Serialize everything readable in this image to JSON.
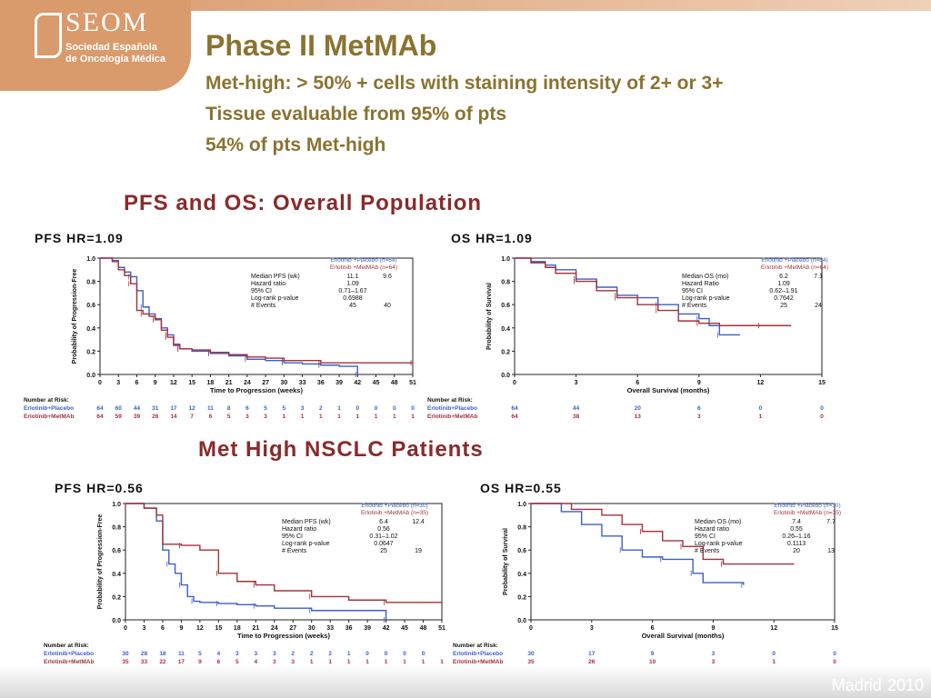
{
  "logo": {
    "name": "SEOM",
    "subtitle1": "Sociedad Española",
    "subtitle2": "de Oncología Médica"
  },
  "header": {
    "title": "Phase II MetMAb",
    "line1": "Met-high: > 50% + cells with staining intensity of 2+ or 3+",
    "line2": "Tissue evaluable from 95% of pts",
    "line3": "54% of pts Met-high"
  },
  "footer": {
    "city": "Madrid",
    "year": "2010"
  },
  "sections": [
    {
      "title": "PFS and OS: Overall Population"
    },
    {
      "title": "Met High NSCLC Patients"
    }
  ],
  "colors": {
    "placebo": "#3a5fcd",
    "metmab": "#a5303a",
    "title": "#8a7330",
    "section": "#8a2a2a"
  },
  "chart_data": [
    {
      "type": "line",
      "label": "PFS HR=1.09",
      "ylabel": "Probability of Progression-Free",
      "xlabel": "Time to Progression (weeks)",
      "xticks": [
        0,
        3,
        6,
        9,
        12,
        15,
        18,
        21,
        24,
        27,
        30,
        33,
        36,
        39,
        42,
        45,
        48,
        51
      ],
      "yticks": [
        "0.0",
        "0.2",
        "0.4",
        "0.6",
        "0.8",
        "1.0"
      ],
      "xlim": [
        0,
        51
      ],
      "ylim": [
        0,
        1
      ],
      "legend_head": [
        "Erlotinib +Placebo (n=64)",
        "Erlotinib +MetMAb (n=64)"
      ],
      "stats": [
        {
          "label": "Median PFS (wk)",
          "a": "11.1",
          "b": "9.6"
        },
        {
          "label": "Hazard ratio",
          "a": "1.09",
          "b": ""
        },
        {
          "label": "95% CI",
          "a": "0.71–1.67",
          "b": ""
        },
        {
          "label": "Log-rank p-value",
          "a": "0.6988",
          "b": ""
        },
        {
          "label": "# Events",
          "a": "45",
          "b": "40"
        }
      ],
      "series": [
        {
          "name": "Erlotinib+Placebo",
          "points": [
            [
              0,
              1
            ],
            [
              2,
              0.98
            ],
            [
              3,
              0.92
            ],
            [
              4,
              0.88
            ],
            [
              5,
              0.84
            ],
            [
              6,
              0.72
            ],
            [
              7,
              0.58
            ],
            [
              8,
              0.52
            ],
            [
              9,
              0.48
            ],
            [
              10,
              0.4
            ],
            [
              11,
              0.34
            ],
            [
              12,
              0.26
            ],
            [
              13,
              0.22
            ],
            [
              15,
              0.2
            ],
            [
              18,
              0.18
            ],
            [
              21,
              0.16
            ],
            [
              24,
              0.13
            ],
            [
              27,
              0.12
            ],
            [
              30,
              0.1
            ],
            [
              33,
              0.09
            ],
            [
              36,
              0.08
            ],
            [
              39,
              0.07
            ],
            [
              42,
              0.0
            ]
          ]
        },
        {
          "name": "Erlotinib+MetMAb",
          "points": [
            [
              0,
              1
            ],
            [
              2,
              0.97
            ],
            [
              3,
              0.9
            ],
            [
              4,
              0.85
            ],
            [
              5,
              0.78
            ],
            [
              6,
              0.55
            ],
            [
              7,
              0.52
            ],
            [
              8,
              0.5
            ],
            [
              9,
              0.47
            ],
            [
              10,
              0.38
            ],
            [
              11,
              0.32
            ],
            [
              12,
              0.25
            ],
            [
              13,
              0.22
            ],
            [
              15,
              0.21
            ],
            [
              18,
              0.19
            ],
            [
              21,
              0.17
            ],
            [
              24,
              0.15
            ],
            [
              27,
              0.14
            ],
            [
              30,
              0.12
            ],
            [
              33,
              0.12
            ],
            [
              36,
              0.1
            ],
            [
              42,
              0.1
            ],
            [
              51,
              0.1
            ]
          ]
        }
      ],
      "risk": {
        "header": "Number at Risk:",
        "rows": [
          {
            "name": "Erlotinib+Placebo",
            "values": [
              "64",
              "60",
              "44",
              "31",
              "17",
              "12",
              "11",
              "8",
              "6",
              "5",
              "5",
              "3",
              "2",
              "1",
              "0",
              "0",
              "0",
              "0"
            ]
          },
          {
            "name": "Erlotinib+MetMAb",
            "values": [
              "64",
              "59",
              "39",
              "26",
              "14",
              "7",
              "6",
              "5",
              "3",
              "3",
              "1",
              "1",
              "1",
              "1",
              "1",
              "1",
              "1",
              "1"
            ]
          }
        ]
      }
    },
    {
      "type": "line",
      "label": "OS HR=1.09",
      "ylabel": "Probability of Survival",
      "xlabel": "Overall Survival (months)",
      "xticks": [
        0,
        3,
        6,
        9,
        12,
        15
      ],
      "yticks": [
        "0.0",
        "0.2",
        "0.4",
        "0.6",
        "0.8",
        "1.0"
      ],
      "xlim": [
        0,
        15
      ],
      "ylim": [
        0,
        1
      ],
      "legend_head": [
        "Erlotinib +Placebo (n=64)",
        "Erlotinib +MetMAb (n=64)"
      ],
      "stats": [
        {
          "label": "Median OS (mo)",
          "a": "6.2",
          "b": "7.1"
        },
        {
          "label": "Hazard Ratio",
          "a": "1.09",
          "b": ""
        },
        {
          "label": "95% CI",
          "a": "0.62–1.91",
          "b": ""
        },
        {
          "label": "Log-rank p-value",
          "a": "0.7642",
          "b": ""
        },
        {
          "label": "# Events",
          "a": "25",
          "b": "24"
        }
      ],
      "series": [
        {
          "name": "Erlotinib+Placebo",
          "points": [
            [
              0,
              1
            ],
            [
              0.8,
              0.97
            ],
            [
              1.5,
              0.94
            ],
            [
              2,
              0.9
            ],
            [
              3,
              0.82
            ],
            [
              4,
              0.75
            ],
            [
              5,
              0.68
            ],
            [
              6,
              0.66
            ],
            [
              7,
              0.6
            ],
            [
              8,
              0.52
            ],
            [
              9,
              0.48
            ],
            [
              9.5,
              0.42
            ],
            [
              10,
              0.34
            ],
            [
              11,
              0.34
            ]
          ]
        },
        {
          "name": "Erlotinib+MetMAb",
          "points": [
            [
              0,
              1
            ],
            [
              0.8,
              0.96
            ],
            [
              1.5,
              0.92
            ],
            [
              2,
              0.87
            ],
            [
              3,
              0.8
            ],
            [
              4,
              0.72
            ],
            [
              5,
              0.66
            ],
            [
              6,
              0.6
            ],
            [
              7,
              0.55
            ],
            [
              8,
              0.46
            ],
            [
              9,
              0.44
            ],
            [
              10,
              0.42
            ],
            [
              12,
              0.42
            ],
            [
              13.5,
              0.42
            ]
          ]
        }
      ],
      "risk": {
        "header": "Number at Risk:",
        "rows": [
          {
            "name": "Erlotinib+Placebo",
            "values": [
              "64",
              "44",
              "20",
              "6",
              "0",
              "0"
            ]
          },
          {
            "name": "Erlotinib+MetMAb",
            "values": [
              "64",
              "38",
              "13",
              "3",
              "1",
              "0"
            ]
          }
        ]
      }
    },
    {
      "type": "line",
      "label": "PFS HR=0.56",
      "ylabel": "Probability of Progression-Free",
      "xlabel": "Time to Progression (weeks)",
      "xticks": [
        0,
        3,
        6,
        9,
        12,
        15,
        18,
        21,
        24,
        27,
        30,
        33,
        36,
        39,
        42,
        45,
        48,
        51
      ],
      "yticks": [
        "0.0",
        "0.2",
        "0.4",
        "0.6",
        "0.8",
        "1.0"
      ],
      "xlim": [
        0,
        51
      ],
      "ylim": [
        0,
        1
      ],
      "legend_head": [
        "Erlotinib +Placebo (n=30)",
        "Erlotinib +MetMAb (n=35)"
      ],
      "stats": [
        {
          "label": "Median PFS (wk)",
          "a": "6.4",
          "b": "12.4"
        },
        {
          "label": "Hazard ratio",
          "a": "0.56",
          "b": ""
        },
        {
          "label": "95% CI",
          "a": "0.31–1.02",
          "b": ""
        },
        {
          "label": "Log-rank p-value",
          "a": "0.0647",
          "b": ""
        },
        {
          "label": "# Events",
          "a": "25",
          "b": "19"
        }
      ],
      "series": [
        {
          "name": "Erlotinib+Placebo",
          "points": [
            [
              0,
              1
            ],
            [
              3,
              0.96
            ],
            [
              5,
              0.85
            ],
            [
              6,
              0.6
            ],
            [
              7,
              0.48
            ],
            [
              8,
              0.4
            ],
            [
              9,
              0.3
            ],
            [
              10,
              0.2
            ],
            [
              11,
              0.16
            ],
            [
              12,
              0.15
            ],
            [
              15,
              0.14
            ],
            [
              18,
              0.13
            ],
            [
              21,
              0.12
            ],
            [
              24,
              0.1
            ],
            [
              30,
              0.08
            ],
            [
              36,
              0.08
            ],
            [
              42,
              0.0
            ]
          ]
        },
        {
          "name": "Erlotinib+MetMAb",
          "points": [
            [
              0,
              1
            ],
            [
              3,
              0.96
            ],
            [
              5,
              0.9
            ],
            [
              6,
              0.65
            ],
            [
              9,
              0.64
            ],
            [
              12,
              0.6
            ],
            [
              15,
              0.4
            ],
            [
              18,
              0.33
            ],
            [
              21,
              0.3
            ],
            [
              24,
              0.25
            ],
            [
              30,
              0.2
            ],
            [
              36,
              0.17
            ],
            [
              42,
              0.15
            ],
            [
              51,
              0.15
            ]
          ]
        }
      ],
      "risk": {
        "header": "Number at Risk:",
        "rows": [
          {
            "name": "Erlotinib+Placebo",
            "values": [
              "30",
              "28",
              "18",
              "11",
              "5",
              "4",
              "3",
              "3",
              "3",
              "2",
              "2",
              "2",
              "1",
              "0",
              "0",
              "0",
              "0",
              ""
            ]
          },
          {
            "name": "Erlotinib+MetMAb",
            "values": [
              "35",
              "33",
              "22",
              "17",
              "9",
              "6",
              "5",
              "4",
              "3",
              "3",
              "1",
              "1",
              "1",
              "1",
              "1",
              "1",
              "1",
              "1"
            ]
          }
        ]
      }
    },
    {
      "type": "line",
      "label": "OS HR=0.55",
      "ylabel": "Probability of Survival",
      "xlabel": "Overall Survival (months)",
      "xticks": [
        0,
        3,
        6,
        9,
        12,
        15
      ],
      "yticks": [
        "0.0",
        "0.2",
        "0.4",
        "0.6",
        "0.8",
        "1.0"
      ],
      "xlim": [
        0,
        15
      ],
      "ylim": [
        0,
        1
      ],
      "legend_head": [
        "Erlotinib +Placebo (n=30)",
        "Erlotinib +MetMAb (n=35)"
      ],
      "stats": [
        {
          "label": "Median OS (mo)",
          "a": "7.4",
          "b": "7.7"
        },
        {
          "label": "Hazard ratio",
          "a": "0.55",
          "b": ""
        },
        {
          "label": "95% CI",
          "a": "0.26–1.16",
          "b": ""
        },
        {
          "label": "Log-rank p-value",
          "a": "0.1113",
          "b": ""
        },
        {
          "label": "# Events",
          "a": "20",
          "b": "13"
        }
      ],
      "series": [
        {
          "name": "Erlotinib+Placebo",
          "points": [
            [
              0,
              1
            ],
            [
              1.5,
              0.93
            ],
            [
              2.5,
              0.82
            ],
            [
              3.5,
              0.72
            ],
            [
              4.5,
              0.6
            ],
            [
              5.5,
              0.54
            ],
            [
              6.5,
              0.52
            ],
            [
              7.5,
              0.52
            ],
            [
              8,
              0.4
            ],
            [
              8.5,
              0.32
            ],
            [
              10.5,
              0.3
            ]
          ]
        },
        {
          "name": "Erlotinib+MetMAb",
          "points": [
            [
              0,
              1
            ],
            [
              2,
              0.95
            ],
            [
              3.5,
              0.9
            ],
            [
              4.5,
              0.82
            ],
            [
              5.5,
              0.76
            ],
            [
              6.5,
              0.68
            ],
            [
              7.5,
              0.63
            ],
            [
              8.5,
              0.52
            ],
            [
              9.5,
              0.48
            ],
            [
              13,
              0.48
            ]
          ]
        }
      ],
      "risk": {
        "header": "Number at Risk:",
        "rows": [
          {
            "name": "Erlotinib+Placebo",
            "values": [
              "30",
              "17",
              "9",
              "3",
              "0",
              "0"
            ]
          },
          {
            "name": "Erlotinib+MetMAb",
            "values": [
              "35",
              "26",
              "10",
              "3",
              "1",
              "0"
            ]
          }
        ]
      }
    }
  ]
}
